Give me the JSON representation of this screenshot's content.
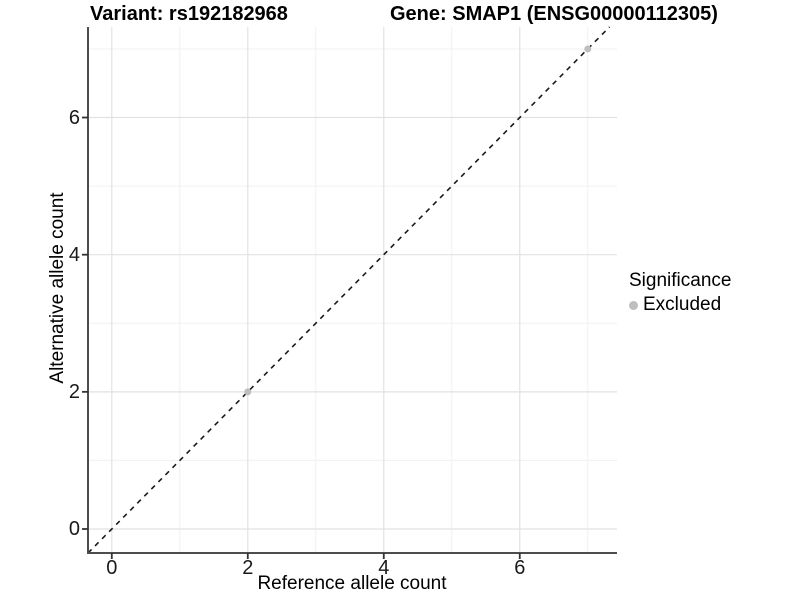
{
  "header": {
    "variant_title": "Variant: rs192182968",
    "gene_title": "Gene: SMAP1 (ENSG00000112305)"
  },
  "chart_data": {
    "type": "scatter",
    "xlabel": "Reference allele count",
    "ylabel": "Alternative allele count",
    "xlim": [
      -0.35,
      7.43
    ],
    "ylim": [
      -0.35,
      7.32
    ],
    "x_ticks": [
      0,
      2,
      4,
      6
    ],
    "y_ticks": [
      0,
      2,
      4,
      6
    ],
    "x_minor_gridlines": [
      1,
      3,
      5,
      7
    ],
    "y_minor_gridlines": [
      1,
      3,
      5,
      7
    ],
    "grid": "major and minor, light gray on white panel",
    "identity_line": {
      "style": "dashed",
      "slope": 1,
      "intercept": 0
    },
    "series": [
      {
        "name": "Excluded",
        "color": "#BEBEBE",
        "points": [
          {
            "x": 2,
            "y": 2
          },
          {
            "x": 7,
            "y": 7
          }
        ]
      }
    ],
    "legend": {
      "title": "Significance",
      "position": "right",
      "items": [
        {
          "label": "Excluded",
          "color": "#BEBEBE"
        }
      ]
    }
  },
  "colors": {
    "background": "#FFFFFF",
    "axis_line": "#4D4D4D",
    "grid_major": "#E2E2E2",
    "grid_minor": "#F0F0F0",
    "tick_mark": "#333333",
    "identity_line": "#1A1A1A",
    "excluded_point": "#BEBEBE"
  }
}
